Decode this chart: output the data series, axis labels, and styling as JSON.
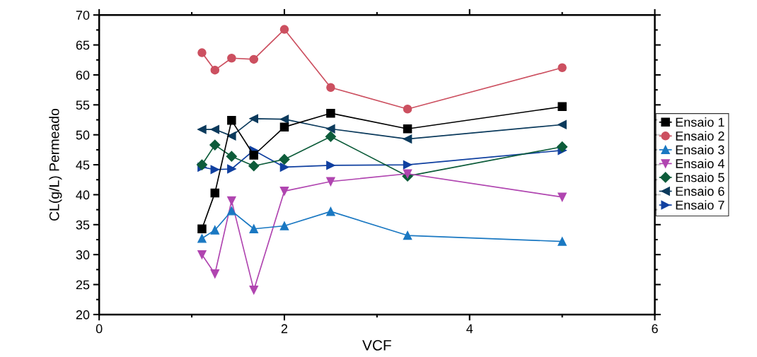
{
  "chart_data": {
    "type": "line",
    "xlabel": "VCF",
    "ylabel": "CL(g/L) Permeado",
    "x": [
      1.11,
      1.25,
      1.43,
      1.67,
      2,
      2.5,
      3.33,
      5
    ],
    "xlim": [
      0,
      6
    ],
    "xticks": [
      0,
      2,
      4,
      6
    ],
    "ylim": [
      20,
      70
    ],
    "yticks": [
      20,
      25,
      30,
      35,
      40,
      45,
      50,
      55,
      60,
      65,
      70
    ],
    "legend": "right",
    "grid": false,
    "series": [
      {
        "name": "Ensaio 1",
        "color": "#000000",
        "marker": "square",
        "values": [
          34.3,
          40.3,
          52.4,
          46.6,
          51.3,
          53.6,
          51.0,
          54.7
        ]
      },
      {
        "name": "Ensaio 2",
        "color": "#cc5060",
        "marker": "circle",
        "values": [
          63.7,
          60.8,
          62.8,
          62.6,
          67.6,
          57.9,
          54.3,
          61.2
        ]
      },
      {
        "name": "Ensaio 3",
        "color": "#1a78c2",
        "marker": "triangle",
        "values": [
          32.7,
          34.1,
          37.3,
          34.3,
          34.8,
          37.2,
          33.2,
          32.2
        ]
      },
      {
        "name": "Ensaio 4",
        "color": "#b045b0",
        "marker": "triangle_down",
        "values": [
          30.0,
          26.8,
          39.0,
          24.1,
          40.6,
          42.2,
          43.5,
          39.6
        ]
      },
      {
        "name": "Ensaio 5",
        "color": "#0d5c3a",
        "marker": "diamond",
        "values": [
          45.0,
          48.3,
          46.4,
          44.8,
          45.9,
          49.7,
          43.1,
          48.0
        ]
      },
      {
        "name": "Ensaio 6",
        "color": "#0b3a5c",
        "marker": "triangle_left",
        "values": [
          50.9,
          50.9,
          49.8,
          52.7,
          52.6,
          51.0,
          49.3,
          51.7
        ]
      },
      {
        "name": "Ensaio 7",
        "color": "#1040a0",
        "marker": "triangle_right",
        "values": [
          44.6,
          44.2,
          44.3,
          47.4,
          44.6,
          44.9,
          45.0,
          47.4
        ]
      }
    ]
  }
}
